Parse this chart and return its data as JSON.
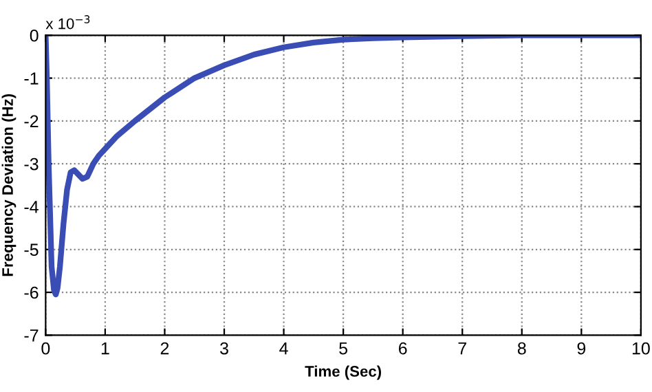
{
  "chart_data": {
    "type": "line",
    "xlabel": "Time (Sec)",
    "ylabel": "Frequency Deviation (Hz)",
    "annotations": [
      "x 10$^{−3}$"
    ],
    "xlim": [
      0,
      10
    ],
    "xticks": [
      0,
      1,
      2,
      3,
      4,
      5,
      6,
      7,
      8,
      9,
      10
    ],
    "ylim": [
      -7,
      0
    ],
    "yticks": [
      -7,
      -6,
      -5,
      -4,
      -3,
      -2,
      -1,
      0
    ],
    "grid": true,
    "marker": "none",
    "line_style": "solid",
    "series": [
      {
        "color": "#3a4db5",
        "x": [
          0,
          0.02,
          0.05,
          0.1,
          0.14,
          0.17,
          0.2,
          0.24,
          0.3,
          0.36,
          0.42,
          0.48,
          0.55,
          0.62,
          0.7,
          0.8,
          0.9,
          1.0,
          1.2,
          1.5,
          2.0,
          2.5,
          3.0,
          3.5,
          4.0,
          4.5,
          5.0,
          5.5,
          6.0,
          7.0,
          8.0,
          9.0,
          10.0
        ],
        "values": [
          0,
          -1.0,
          -3.0,
          -5.4,
          -5.95,
          -6.05,
          -5.9,
          -5.4,
          -4.4,
          -3.6,
          -3.2,
          -3.15,
          -3.25,
          -3.35,
          -3.3,
          -3.0,
          -2.8,
          -2.65,
          -2.35,
          -2.0,
          -1.45,
          -1.0,
          -0.7,
          -0.45,
          -0.28,
          -0.17,
          -0.1,
          -0.07,
          -0.05,
          -0.02,
          0,
          0,
          0
        ]
      }
    ]
  }
}
